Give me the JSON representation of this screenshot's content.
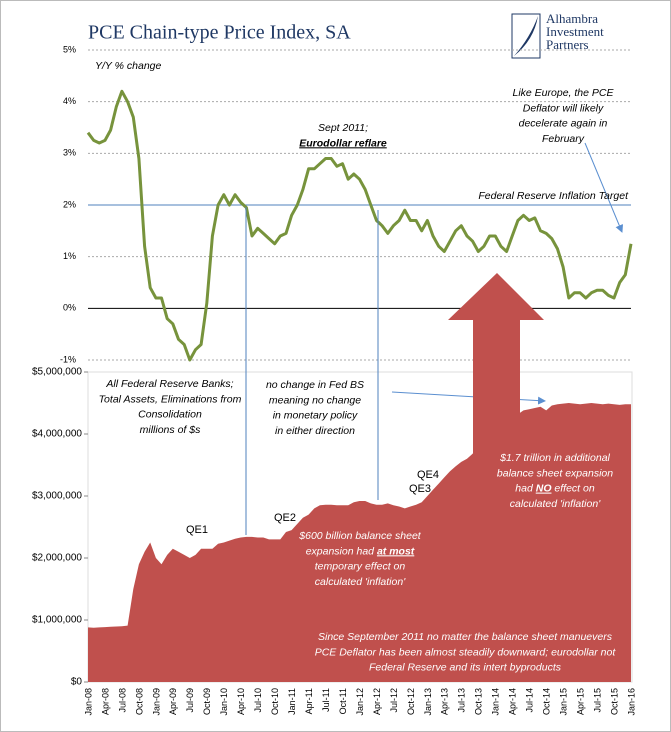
{
  "title": "PCE Chain-type Price Index, SA",
  "logo": [
    "Alhambra",
    "Investment",
    "Partners"
  ],
  "chart_data": [
    {
      "type": "line",
      "color": "#77933c",
      "ylim": [
        -1,
        5
      ],
      "yticks": [
        {
          "value": -1,
          "label": "-1%"
        },
        {
          "value": 0,
          "label": "0%"
        },
        {
          "value": 1,
          "label": "1%"
        },
        {
          "value": 2,
          "label": "2%"
        },
        {
          "value": 3,
          "label": "3%"
        },
        {
          "value": 4,
          "label": "4%"
        },
        {
          "value": 5,
          "label": "5%"
        }
      ],
      "grid": true,
      "target": 2,
      "values": [
        3.4,
        3.25,
        3.2,
        3.25,
        3.45,
        3.9,
        4.2,
        4.0,
        3.7,
        2.9,
        1.2,
        0.4,
        0.2,
        0.2,
        -0.2,
        -0.3,
        -0.6,
        -0.7,
        -1.0,
        -0.8,
        -0.7,
        0.1,
        1.4,
        2.0,
        2.2,
        2.0,
        2.2,
        2.05,
        1.95,
        1.4,
        1.55,
        1.45,
        1.35,
        1.25,
        1.4,
        1.45,
        1.8,
        2.0,
        2.3,
        2.7,
        2.7,
        2.8,
        2.9,
        2.9,
        2.75,
        2.8,
        2.5,
        2.6,
        2.5,
        2.3,
        2.0,
        1.7,
        1.6,
        1.45,
        1.6,
        1.7,
        1.9,
        1.7,
        1.7,
        1.5,
        1.7,
        1.4,
        1.2,
        1.1,
        1.3,
        1.5,
        1.6,
        1.4,
        1.3,
        1.1,
        1.2,
        1.4,
        1.4,
        1.2,
        1.1,
        1.4,
        1.7,
        1.8,
        1.7,
        1.75,
        1.5,
        1.45,
        1.35,
        1.15,
        0.8,
        0.2,
        0.3,
        0.3,
        0.2,
        0.3,
        0.35,
        0.35,
        0.25,
        0.2,
        0.5,
        0.65,
        1.25
      ],
      "annotations": [
        {
          "lines": [
            "Y/Y % change"
          ]
        },
        {
          "lines": [
            "Sept 2011;",
            [
              {
                "text": "Eurodollar reflare",
                "bold": true,
                "underline": true
              }
            ]
          ]
        },
        {
          "lines": [
            "Like Europe, the PCE",
            "Deflator will likely",
            "decelerate again in",
            "February"
          ]
        },
        {
          "lines": [
            "Federal Reserve Inflation Target"
          ]
        }
      ]
    },
    {
      "type": "area",
      "color": "#c0504d",
      "ylim": [
        0,
        5000000
      ],
      "yticks": [
        {
          "value": 0,
          "label": "$0"
        },
        {
          "value": 1000000,
          "label": "$1,000,000"
        },
        {
          "value": 2000000,
          "label": "$2,000,000"
        },
        {
          "value": 3000000,
          "label": "$3,000,000"
        },
        {
          "value": 4000000,
          "label": "$4,000,000"
        },
        {
          "value": 5000000,
          "label": "$5,000,000"
        }
      ],
      "categories": [
        "Jan-08",
        null,
        null,
        "Apr-08",
        null,
        null,
        "Jul-08",
        null,
        null,
        "Oct-08",
        null,
        null,
        "Jan-09",
        null,
        null,
        "Apr-09",
        null,
        null,
        "Jul-09",
        null,
        null,
        "Oct-09",
        null,
        null,
        "Jan-10",
        null,
        null,
        "Apr-10",
        null,
        null,
        "Jul-10",
        null,
        null,
        "Oct-10",
        null,
        null,
        "Jan-11",
        null,
        null,
        "Apr-11",
        null,
        null,
        "Jul-11",
        null,
        null,
        "Oct-11",
        null,
        null,
        "Jan-12",
        null,
        null,
        "Apr-12",
        null,
        null,
        "Jul-12",
        null,
        null,
        "Oct-12",
        null,
        null,
        "Jan-13",
        null,
        null,
        "Apr-13",
        null,
        null,
        "Jul-13",
        null,
        null,
        "Oct-13",
        null,
        null,
        "Jan-14",
        null,
        null,
        "Apr-14",
        null,
        null,
        "Jul-14",
        null,
        null,
        "Oct-14",
        null,
        null,
        "Jan-15",
        null,
        null,
        "Apr-15",
        null,
        null,
        "Jul-15",
        null,
        null,
        "Oct-15",
        null,
        null,
        "Jan-16"
      ],
      "values": [
        880000,
        875000,
        880000,
        885000,
        890000,
        895000,
        900000,
        910000,
        1500000,
        1900000,
        2100000,
        2250000,
        2000000,
        1900000,
        2050000,
        2150000,
        2100000,
        2050000,
        2000000,
        2050000,
        2150000,
        2150000,
        2150000,
        2230000,
        2250000,
        2280000,
        2310000,
        2330000,
        2340000,
        2340000,
        2330000,
        2330000,
        2300000,
        2300000,
        2300000,
        2420000,
        2450000,
        2550000,
        2650000,
        2700000,
        2800000,
        2850000,
        2860000,
        2860000,
        2850000,
        2850000,
        2850000,
        2900000,
        2920000,
        2920000,
        2880000,
        2860000,
        2860000,
        2880000,
        2850000,
        2830000,
        2800000,
        2830000,
        2860000,
        2900000,
        3000000,
        3100000,
        3200000,
        3300000,
        3400000,
        3480000,
        3550000,
        3600000,
        3680000,
        3800000,
        3900000,
        4000000,
        4100000,
        4150000,
        4220000,
        4260000,
        4320000,
        4380000,
        4400000,
        4420000,
        4440000,
        4380000,
        4460000,
        4480000,
        4490000,
        4500000,
        4490000,
        4480000,
        4490000,
        4500000,
        4490000,
        4480000,
        4490000,
        4480000,
        4470000,
        4480000,
        4480000
      ],
      "annotations": [
        {
          "lines": [
            "All Federal Reserve Banks;",
            "Total Assets, Eliminations from",
            "Consolidation",
            "millions of $s"
          ]
        },
        {
          "lines": [
            "no change in Fed BS",
            "meaning no change",
            "in monetary policy",
            "in either direction"
          ]
        },
        {
          "lines": [
            "QE1"
          ]
        },
        {
          "lines": [
            "QE2"
          ]
        },
        {
          "lines": [
            "QE3"
          ]
        },
        {
          "lines": [
            "QE4"
          ]
        },
        {
          "lines": [
            "$1.7 trillion in additional",
            "balance sheet expansion",
            [
              "had ",
              {
                "text": "NO",
                "bold": true,
                "underline": true
              },
              " effect on"
            ],
            "calculated 'inflation'"
          ]
        },
        {
          "lines": [
            "$600 billion balance sheet",
            [
              "expansion had ",
              {
                "text": "at most",
                "bold": true,
                "underline": true
              }
            ],
            "temporary effect on",
            "calculated 'inflation'"
          ]
        },
        {
          "lines": [
            "Since September 2011 no matter the balance sheet manuevers",
            "PCE Deflator has been almost steadily downward; eurodollar not",
            "Federal Reserve and its intert byproducts"
          ]
        }
      ]
    }
  ]
}
